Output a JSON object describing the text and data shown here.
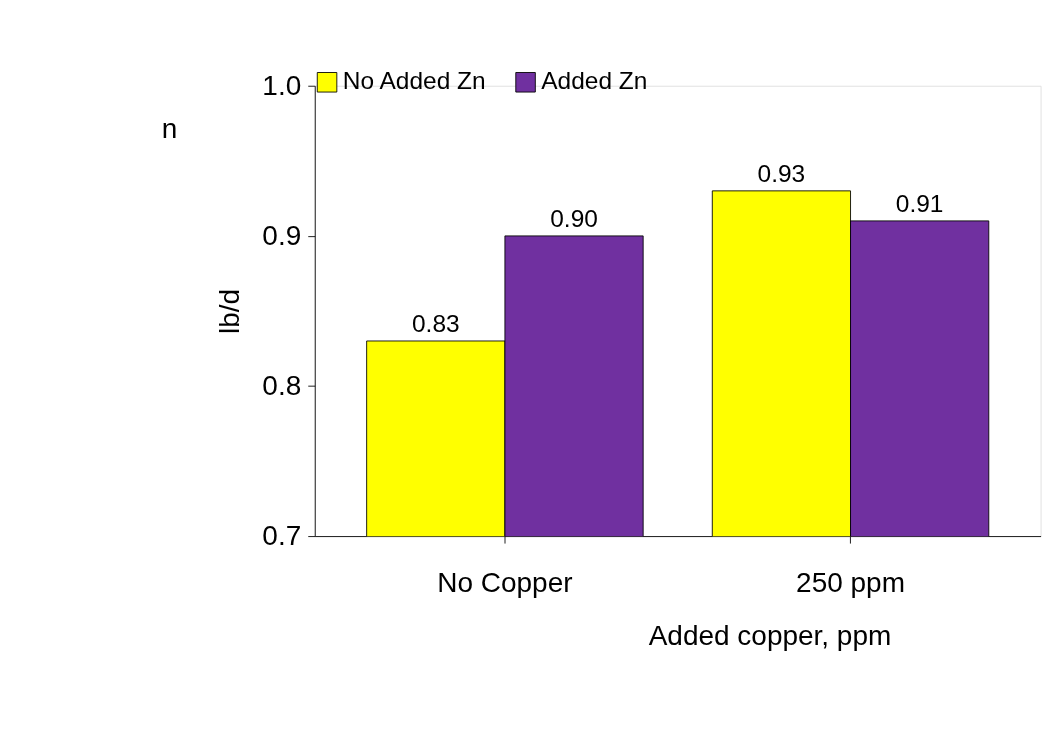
{
  "chart_data": {
    "type": "bar",
    "categories": [
      "No Copper",
      "250 ppm"
    ],
    "series": [
      {
        "name": "No Added Zn",
        "color": "#ffff00",
        "values": [
          0.83,
          0.93
        ],
        "value_labels": [
          "0.83",
          "0.93"
        ]
      },
      {
        "name": "Added Zn",
        "color": "#7030a0",
        "values": [
          0.9,
          0.91
        ],
        "value_labels": [
          "0.90",
          "0.91"
        ]
      }
    ],
    "xlabel": "Added copper, ppm",
    "ylabel": "lb/d",
    "ylim": [
      0.7,
      1.0
    ],
    "yticks": [
      {
        "value": 0.7,
        "label": "0.7"
      },
      {
        "value": 0.8,
        "label": "0.8"
      },
      {
        "value": 0.9,
        "label": "0.9"
      },
      {
        "value": 1.0,
        "label": "1.0"
      }
    ],
    "grid": false,
    "legend": "top",
    "annotations": [
      "n"
    ]
  }
}
